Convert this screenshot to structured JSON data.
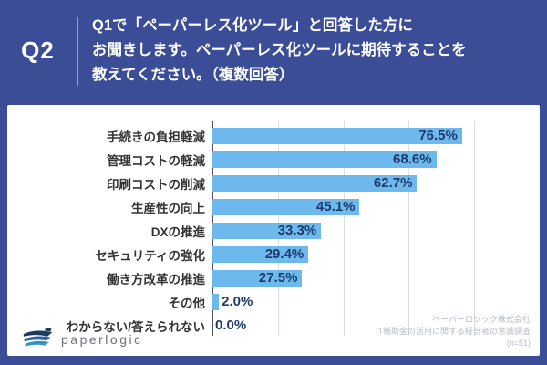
{
  "header": {
    "question_number": "Q2",
    "question_lines": [
      "Q1で「ペーパーレス化ツール」と回答した方に",
      "お聞きします。ペーパーレス化ツールに期待することを",
      "教えてください。（複数回答）"
    ]
  },
  "chart_data": {
    "type": "bar",
    "orientation": "horizontal",
    "title": "",
    "xlabel": "",
    "ylabel": "",
    "categories": [
      "手続きの負担軽減",
      "管理コストの軽減",
      "印刷コストの削減",
      "生産性の向上",
      "DXの推進",
      "セキュリティの強化",
      "働き方改革の推進",
      "その他",
      "わからない/答えられない"
    ],
    "values": [
      76.5,
      68.6,
      62.7,
      45.1,
      33.3,
      29.4,
      27.5,
      2.0,
      0.0
    ],
    "value_labels": [
      "76.5%",
      "68.6%",
      "62.7%",
      "45.1%",
      "33.3%",
      "29.4%",
      "27.5%",
      "2.0%",
      "0.0%"
    ],
    "xlim": [
      0,
      100
    ],
    "gridline_percents": [
      20,
      40,
      60,
      80
    ],
    "grid": true,
    "legend": false,
    "bar_color": "#6db9ee",
    "value_label_color": "#1e3a6d",
    "inside_label_min_value": 25
  },
  "footer": {
    "logo_text": "paperlogic",
    "source_lines": [
      "ペーパーロジック株式会社",
      "IT補助金の活用に関する経営者の意識調査",
      "(n=51)"
    ]
  },
  "colors": {
    "background_navy": "#3b4d96",
    "card_white": "#ffffff",
    "bar_blue": "#6db9ee",
    "value_navy": "#1e3a6d",
    "gridline_gray": "#d9dce1",
    "axis_gray": "#4a5263",
    "watermark_gray": "#b7bec6"
  }
}
